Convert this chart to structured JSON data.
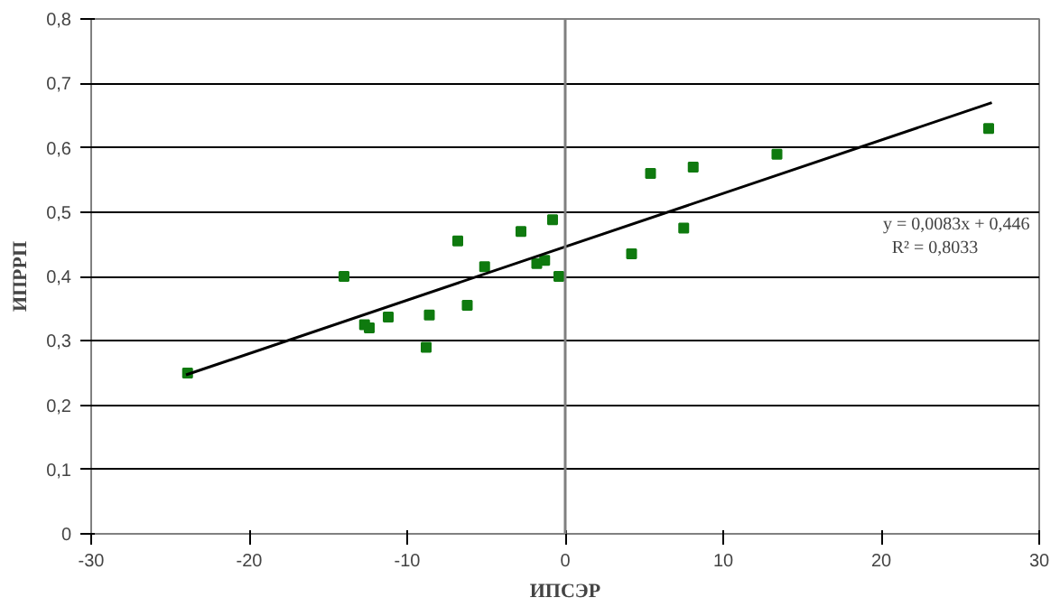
{
  "chart_data": {
    "type": "scatter",
    "xlabel": "ИПСЭР",
    "ylabel": "ИПРРП",
    "xlim": [
      -30,
      30
    ],
    "xticks": [
      -30,
      -20,
      -10,
      0,
      10,
      20,
      30
    ],
    "ylim": [
      0,
      0.8
    ],
    "yticks": [
      {
        "value": 0,
        "label": "0"
      },
      {
        "value": 0.1,
        "label": "0,1"
      },
      {
        "value": 0.2,
        "label": "0,2"
      },
      {
        "value": 0.3,
        "label": "0,3"
      },
      {
        "value": 0.4,
        "label": "0,4"
      },
      {
        "value": 0.5,
        "label": "0,5"
      },
      {
        "value": 0.6,
        "label": "0,6"
      },
      {
        "value": 0.7,
        "label": "0,7"
      },
      {
        "value": 0.8,
        "label": "0,8"
      }
    ],
    "grid": "y",
    "marker": "square",
    "ref_lines": [
      {
        "axis": "x",
        "value": 0,
        "color": "#808080"
      }
    ],
    "series": [
      {
        "color": "#0f7a0f",
        "x": [
          -23.9,
          -14,
          -12.7,
          -12.4,
          -11.2,
          -8.8,
          -8.6,
          -6.8,
          -6.2,
          -5.1,
          -2.8,
          -1.8,
          -1.3,
          -0.8,
          -0.4,
          4.2,
          5.4,
          7.5,
          8.1,
          13.4,
          26.8
        ],
        "values": [
          0.25,
          0.4,
          0.325,
          0.32,
          0.337,
          0.29,
          0.34,
          0.455,
          0.355,
          0.415,
          0.47,
          0.42,
          0.425,
          0.488,
          0.4,
          0.435,
          0.56,
          0.475,
          0.57,
          0.59,
          0.63
        ]
      },
      {
        "type": "line",
        "color": "#000000",
        "marker": "none",
        "x": [
          -24,
          27
        ],
        "values": [
          0.247,
          0.67
        ]
      }
    ],
    "annotations": [
      "y = 0,0083x + 0,446",
      "R² = 0,8033"
    ]
  }
}
